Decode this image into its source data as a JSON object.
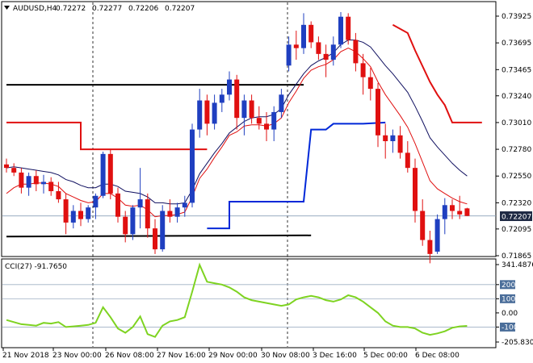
{
  "header": {
    "symbol": "AUDUSD,H4",
    "open": "0.72272",
    "high": "0.72277",
    "low": "0.72206",
    "close": "0.72207"
  },
  "current_price": "0.72207",
  "price_axis": [
    "0.73925",
    "0.73695",
    "0.73465",
    "0.73240",
    "0.73010",
    "0.72780",
    "0.72550",
    "0.72320",
    "0.72095",
    "0.71865"
  ],
  "time_axis": [
    "21 Nov 2018",
    "23 Nov 00:00",
    "26 Nov 08:00",
    "27 Nov 16:00",
    "29 Nov 00:00",
    "30 Nov 08:00",
    "3 Dec 16:00",
    "5 Dec 00:00",
    "6 Dec 08:00"
  ],
  "indicator": {
    "label": "CCI(27) -91.7650",
    "axis": [
      "341.4876",
      "200",
      "100",
      "0.00",
      "-100",
      "-205.8307"
    ],
    "levels": [
      200,
      100,
      -100
    ]
  },
  "colors": {
    "bull": "#1f3fc0",
    "bear": "#e01010",
    "ma_fast": "#e01010",
    "ma_slow": "#101060",
    "stop_up": "#0028d8",
    "stop_down": "#e01010",
    "cci_line": "#7ed321",
    "level_box": "#4b6e9a",
    "current_box": "#1f2a44"
  },
  "chart_data": [
    {
      "type": "candlestick",
      "title": "AUDUSD,H4",
      "ylim": [
        0.71865,
        0.7405
      ],
      "candles": [
        [
          0.7265,
          0.727,
          0.7258,
          0.7262
        ],
        [
          0.7262,
          0.7266,
          0.7255,
          0.7258
        ],
        [
          0.7258,
          0.7262,
          0.724,
          0.7245
        ],
        [
          0.7245,
          0.7258,
          0.7238,
          0.7255
        ],
        [
          0.7255,
          0.726,
          0.7242,
          0.7248
        ],
        [
          0.7248,
          0.7256,
          0.724,
          0.725
        ],
        [
          0.725,
          0.7254,
          0.7238,
          0.7242
        ],
        [
          0.7242,
          0.725,
          0.7232,
          0.7235
        ],
        [
          0.7235,
          0.724,
          0.7205,
          0.7215
        ],
        [
          0.7215,
          0.723,
          0.721,
          0.7225
        ],
        [
          0.7225,
          0.7232,
          0.7212,
          0.7218
        ],
        [
          0.7218,
          0.723,
          0.7215,
          0.7228
        ],
        [
          0.7228,
          0.724,
          0.7218,
          0.7238
        ],
        [
          0.7238,
          0.7276,
          0.7236,
          0.7274
        ],
        [
          0.7274,
          0.7278,
          0.7235,
          0.724
        ],
        [
          0.724,
          0.7245,
          0.7215,
          0.722
        ],
        [
          0.722,
          0.7225,
          0.7198,
          0.7205
        ],
        [
          0.7205,
          0.723,
          0.72,
          0.7228
        ],
        [
          0.7228,
          0.7262,
          0.721,
          0.7235
        ],
        [
          0.7235,
          0.724,
          0.7202,
          0.721
        ],
        [
          0.721,
          0.7218,
          0.7188,
          0.7192
        ],
        [
          0.7192,
          0.723,
          0.719,
          0.7225
        ],
        [
          0.7225,
          0.7235,
          0.7215,
          0.722
        ],
        [
          0.722,
          0.7232,
          0.7215,
          0.7228
        ],
        [
          0.7228,
          0.7238,
          0.722,
          0.7232
        ],
        [
          0.7232,
          0.73,
          0.7228,
          0.7295
        ],
        [
          0.7295,
          0.733,
          0.7288,
          0.732
        ],
        [
          0.732,
          0.7325,
          0.729,
          0.73
        ],
        [
          0.73,
          0.7325,
          0.7295,
          0.7318
        ],
        [
          0.7318,
          0.733,
          0.731,
          0.7325
        ],
        [
          0.7325,
          0.7345,
          0.732,
          0.7338
        ],
        [
          0.7338,
          0.7342,
          0.7295,
          0.7305
        ],
        [
          0.7305,
          0.7325,
          0.729,
          0.732
        ],
        [
          0.732,
          0.7325,
          0.73,
          0.7305
        ],
        [
          0.7305,
          0.7315,
          0.7295,
          0.73
        ],
        [
          0.73,
          0.731,
          0.7285,
          0.7295
        ],
        [
          0.7295,
          0.7315,
          0.7285,
          0.731
        ],
        [
          0.731,
          0.733,
          0.7305,
          0.7325
        ],
        [
          0.735,
          0.7375,
          0.7345,
          0.7368
        ],
        [
          0.7368,
          0.738,
          0.7355,
          0.7365
        ],
        [
          0.7365,
          0.7395,
          0.736,
          0.7385
        ],
        [
          0.7385,
          0.7388,
          0.7365,
          0.737
        ],
        [
          0.737,
          0.7375,
          0.7355,
          0.736
        ],
        [
          0.736,
          0.7368,
          0.734,
          0.7355
        ],
        [
          0.7355,
          0.7375,
          0.735,
          0.7368
        ],
        [
          0.7368,
          0.7396,
          0.7365,
          0.7392
        ],
        [
          0.7392,
          0.7395,
          0.7368,
          0.7372
        ],
        [
          0.7372,
          0.7378,
          0.7345,
          0.7352
        ],
        [
          0.7352,
          0.736,
          0.7325,
          0.734
        ],
        [
          0.734,
          0.7348,
          0.732,
          0.733
        ],
        [
          0.733,
          0.7335,
          0.728,
          0.729
        ],
        [
          0.729,
          0.73,
          0.727,
          0.7285
        ],
        [
          0.7285,
          0.7295,
          0.7275,
          0.729
        ],
        [
          0.729,
          0.7298,
          0.727,
          0.7275
        ],
        [
          0.7275,
          0.7285,
          0.7258,
          0.7262
        ],
        [
          0.7262,
          0.727,
          0.7215,
          0.7225
        ],
        [
          0.7225,
          0.7235,
          0.7195,
          0.72
        ],
        [
          0.72,
          0.7208,
          0.718,
          0.7188
        ],
        [
          0.719,
          0.7222,
          0.7188,
          0.7218
        ],
        [
          0.7218,
          0.7236,
          0.7205,
          0.723
        ],
        [
          0.723,
          0.7235,
          0.7218,
          0.7225
        ],
        [
          0.7225,
          0.7238,
          0.7218,
          0.7222
        ],
        [
          0.72272,
          0.72277,
          0.72206,
          0.72207
        ]
      ],
      "ma_fast": [
        0.724,
        0.7245,
        0.7248,
        0.7248,
        0.7249,
        0.7249,
        0.7248,
        0.7246,
        0.724,
        0.7237,
        0.7234,
        0.7232,
        0.7233,
        0.724,
        0.724,
        0.7236,
        0.723,
        0.7229,
        0.723,
        0.7226,
        0.722,
        0.7221,
        0.7221,
        0.7222,
        0.7224,
        0.7237,
        0.7253,
        0.7261,
        0.7271,
        0.728,
        0.729,
        0.7293,
        0.7298,
        0.7299,
        0.7299,
        0.7298,
        0.73,
        0.7305,
        0.7318,
        0.7328,
        0.7339,
        0.7346,
        0.7349,
        0.7351,
        0.7355,
        0.7362,
        0.7365,
        0.7362,
        0.7356,
        0.7349,
        0.7336,
        0.7325,
        0.7316,
        0.7307,
        0.7297,
        0.7283,
        0.7267,
        0.7251,
        0.7244,
        0.724,
        0.7236,
        0.7233,
        0.7231
      ],
      "ma_slow": [
        0.7262,
        0.7263,
        0.7262,
        0.7261,
        0.726,
        0.7259,
        0.7258,
        0.7256,
        0.7252,
        0.725,
        0.7247,
        0.7245,
        0.7245,
        0.7248,
        0.7248,
        0.7246,
        0.7242,
        0.7241,
        0.724,
        0.7237,
        0.7232,
        0.7232,
        0.7231,
        0.7231,
        0.7232,
        0.7243,
        0.7257,
        0.7266,
        0.7275,
        0.7283,
        0.7292,
        0.7297,
        0.7302,
        0.7305,
        0.7306,
        0.7306,
        0.7308,
        0.7313,
        0.7325,
        0.7334,
        0.7343,
        0.735,
        0.7354,
        0.7357,
        0.7361,
        0.7368,
        0.7372,
        0.7372,
        0.737,
        0.7366,
        0.7358,
        0.735,
        0.7343,
        0.7335,
        0.7327,
        0.7315,
        0.7302,
        0.7288,
        0.728,
        0.7273,
        0.7266,
        0.726,
        0.7255
      ],
      "stop_levels": [
        {
          "name": "red-stop-1",
          "color": "#e01010",
          "points": [
            [
              0,
              0.7301
            ],
            [
              10,
              0.7301
            ],
            [
              10,
              0.7278
            ],
            [
              27,
              0.7278
            ]
          ]
        },
        {
          "name": "black-level-upper",
          "color": "#000000",
          "points": [
            [
              0,
              0.73335
            ],
            [
              40,
              0.73335
            ]
          ]
        },
        {
          "name": "black-level-lower",
          "color": "#000000",
          "points": [
            [
              0,
              0.7203
            ],
            [
              41,
              0.7204
            ]
          ]
        },
        {
          "name": "blue-stop",
          "color": "#0028d8",
          "points": [
            [
              27,
              0.721
            ],
            [
              30,
              0.721
            ],
            [
              30,
              0.7233
            ],
            [
              40,
              0.7233
            ],
            [
              41,
              0.7295
            ],
            [
              43,
              0.7295
            ],
            [
              44,
              0.73
            ],
            [
              48,
              0.73
            ],
            [
              51,
              0.7301
            ]
          ]
        },
        {
          "name": "red-stop-2",
          "color": "#e01010",
          "points": [
            [
              52,
              0.7385
            ],
            [
              54,
              0.7378
            ],
            [
              55,
              0.7363
            ],
            [
              57,
              0.7336
            ],
            [
              58,
              0.7325
            ],
            [
              59,
              0.7316
            ],
            [
              60,
              0.7301
            ],
            [
              64,
              0.7301
            ]
          ]
        }
      ]
    },
    {
      "type": "line",
      "title": "CCI(27) -91.7650",
      "ylim": [
        -205.8307,
        341.4876
      ],
      "series": [
        {
          "values": [
            -50,
            -65,
            -80,
            -85,
            -90,
            -70,
            -75,
            -65,
            -100,
            -95,
            -90,
            -85,
            -70,
            40,
            -30,
            -110,
            -140,
            -100,
            -25,
            -150,
            -170,
            -90,
            -60,
            -50,
            -30,
            150,
            340,
            220,
            210,
            200,
            180,
            150,
            110,
            90,
            80,
            70,
            60,
            50,
            60,
            95,
            110,
            120,
            110,
            90,
            80,
            95,
            125,
            110,
            80,
            40,
            0,
            -60,
            -90,
            -100,
            -100,
            -110,
            -140,
            -155,
            -145,
            -130,
            -105,
            -95,
            -92
          ]
        }
      ]
    }
  ]
}
